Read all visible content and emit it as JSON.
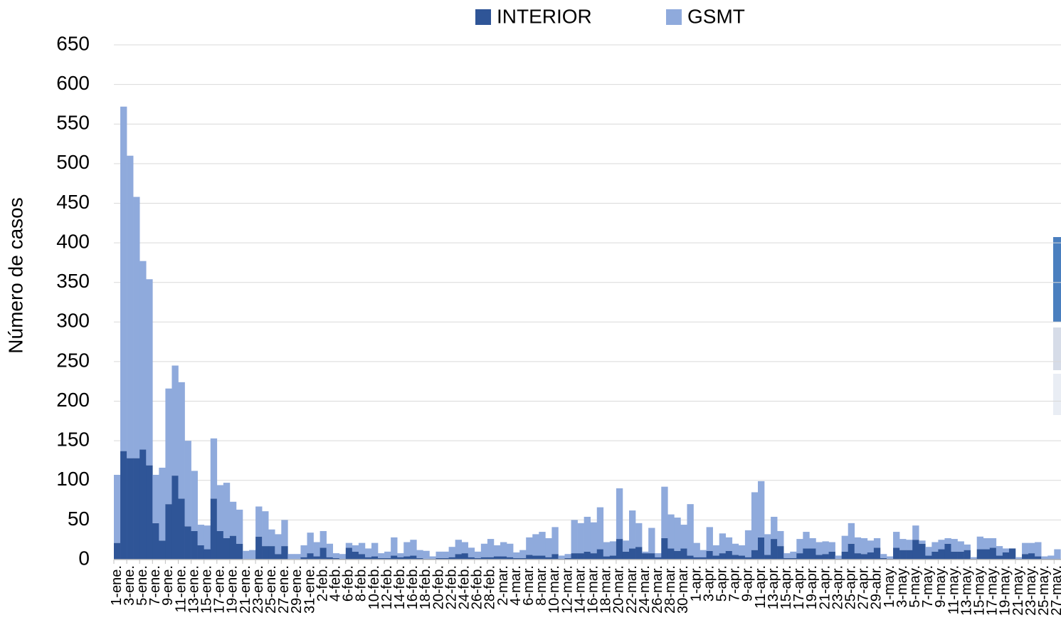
{
  "chart_data": {
    "type": "stacked_bar",
    "y_label": "Número de casos",
    "ylim": [
      0,
      650
    ],
    "yticks": [
      0,
      50,
      100,
      150,
      200,
      250,
      300,
      350,
      400,
      450,
      500,
      550,
      600,
      650
    ],
    "grid": true,
    "legend": "top",
    "categories": [
      "1-ene.",
      null,
      "3-ene.",
      null,
      "5-ene.",
      null,
      "7-ene.",
      null,
      "9-ene.",
      null,
      "11-ene.",
      null,
      "13-ene.",
      null,
      "15-ene.",
      null,
      "17-ene.",
      null,
      "19-ene.",
      null,
      "21-ene.",
      null,
      "23-ene.",
      null,
      "25-ene.",
      null,
      "27-ene.",
      null,
      "29-ene.",
      null,
      "31-ene.",
      null,
      "2-feb.",
      null,
      "4-feb.",
      null,
      "6-feb.",
      null,
      "8-feb.",
      null,
      "10-feb.",
      null,
      "12-feb.",
      null,
      "14-feb.",
      null,
      "16-feb.",
      null,
      "18-feb.",
      null,
      "20-feb.",
      null,
      "22-feb.",
      null,
      "24-feb.",
      null,
      "26-feb.",
      null,
      "28-feb.",
      null,
      "2-mar.",
      null,
      "4-mar.",
      null,
      "6-mar.",
      null,
      "8-mar.",
      null,
      "10-mar.",
      null,
      "12-mar.",
      null,
      "14-mar.",
      null,
      "16-mar.",
      null,
      "18-mar.",
      null,
      "20-mar.",
      null,
      "22-mar.",
      null,
      "24-mar.",
      null,
      "26-mar.",
      null,
      "28-mar.",
      null,
      "30-mar.",
      null,
      "1-apr.",
      null,
      "3-apr.",
      null,
      "5-apr.",
      null,
      "7-apr.",
      null,
      "9-apr.",
      null,
      "11-apr.",
      null,
      "13-apr.",
      null,
      "15-apr.",
      null,
      "17-apr.",
      null,
      "19-apr.",
      null,
      "21-apr.",
      null,
      "23-apr.",
      null,
      "25-apr.",
      null,
      "27-apr.",
      null,
      "29-abr.",
      null,
      "1-may.",
      null,
      "3-may.",
      null,
      "5-may.",
      null,
      "7-may.",
      null,
      "9-may.",
      null,
      "11-may.",
      null,
      "13-may.",
      null,
      "15-may.",
      null,
      "17-may.",
      null,
      "19-may.",
      null,
      "21-may.",
      null,
      "23-may.",
      null,
      "25-may.",
      null,
      "27-may."
    ],
    "series": [
      {
        "name": "INTERIOR",
        "color": "#2f5597",
        "values": [
          21,
          137,
          128,
          128,
          139,
          119,
          46,
          24,
          70,
          106,
          77,
          42,
          36,
          18,
          13,
          77,
          36,
          27,
          30,
          20,
          0,
          0,
          29,
          17,
          17,
          7,
          17,
          0,
          0,
          3,
          8,
          4,
          15,
          3,
          2,
          1,
          15,
          10,
          7,
          3,
          4,
          2,
          2,
          5,
          3,
          4,
          5,
          2,
          1,
          1,
          2,
          2,
          3,
          7,
          8,
          3,
          2,
          3,
          3,
          4,
          4,
          3,
          2,
          2,
          6,
          5,
          5,
          3,
          7,
          1,
          2,
          8,
          8,
          10,
          8,
          13,
          4,
          5,
          26,
          10,
          14,
          16,
          8,
          8,
          3,
          27,
          14,
          11,
          14,
          5,
          3,
          3,
          11,
          5,
          8,
          11,
          6,
          5,
          3,
          12,
          28,
          6,
          26,
          17,
          2,
          2,
          8,
          14,
          14,
          6,
          7,
          10,
          1,
          10,
          20,
          8,
          7,
          9,
          15,
          2,
          1,
          15,
          12,
          12,
          25,
          20,
          5,
          10,
          13,
          20,
          10,
          10,
          12,
          1,
          13,
          13,
          15,
          5,
          9,
          14,
          1,
          7,
          8,
          4,
          1,
          1,
          1
        ]
      },
      {
        "name": "GSMT",
        "color": "#8faadc",
        "values": [
          86,
          435,
          382,
          330,
          238,
          235,
          61,
          92,
          146,
          139,
          147,
          108,
          76,
          26,
          30,
          76,
          58,
          70,
          43,
          43,
          11,
          12,
          38,
          44,
          21,
          25,
          33,
          7,
          7,
          15,
          26,
          18,
          21,
          17,
          6,
          6,
          6,
          8,
          14,
          11,
          17,
          6,
          8,
          23,
          5,
          18,
          20,
          10,
          10,
          3,
          8,
          8,
          13,
          18,
          14,
          12,
          8,
          17,
          23,
          14,
          18,
          17,
          7,
          10,
          22,
          27,
          30,
          24,
          34,
          4,
          5,
          42,
          38,
          44,
          39,
          53,
          18,
          18,
          64,
          14,
          48,
          30,
          2,
          32,
          5,
          65,
          43,
          42,
          30,
          65,
          18,
          9,
          30,
          13,
          25,
          17,
          14,
          13,
          34,
          73,
          71,
          26,
          28,
          19,
          6,
          8,
          18,
          21,
          13,
          16,
          16,
          12,
          4,
          20,
          26,
          20,
          20,
          15,
          12,
          5,
          3,
          20,
          14,
          13,
          18,
          4,
          11,
          12,
          12,
          7,
          16,
          13,
          7,
          2,
          16,
          14,
          12,
          12,
          5,
          0,
          2,
          14,
          13,
          18,
          3,
          4,
          12
        ]
      }
    ]
  }
}
